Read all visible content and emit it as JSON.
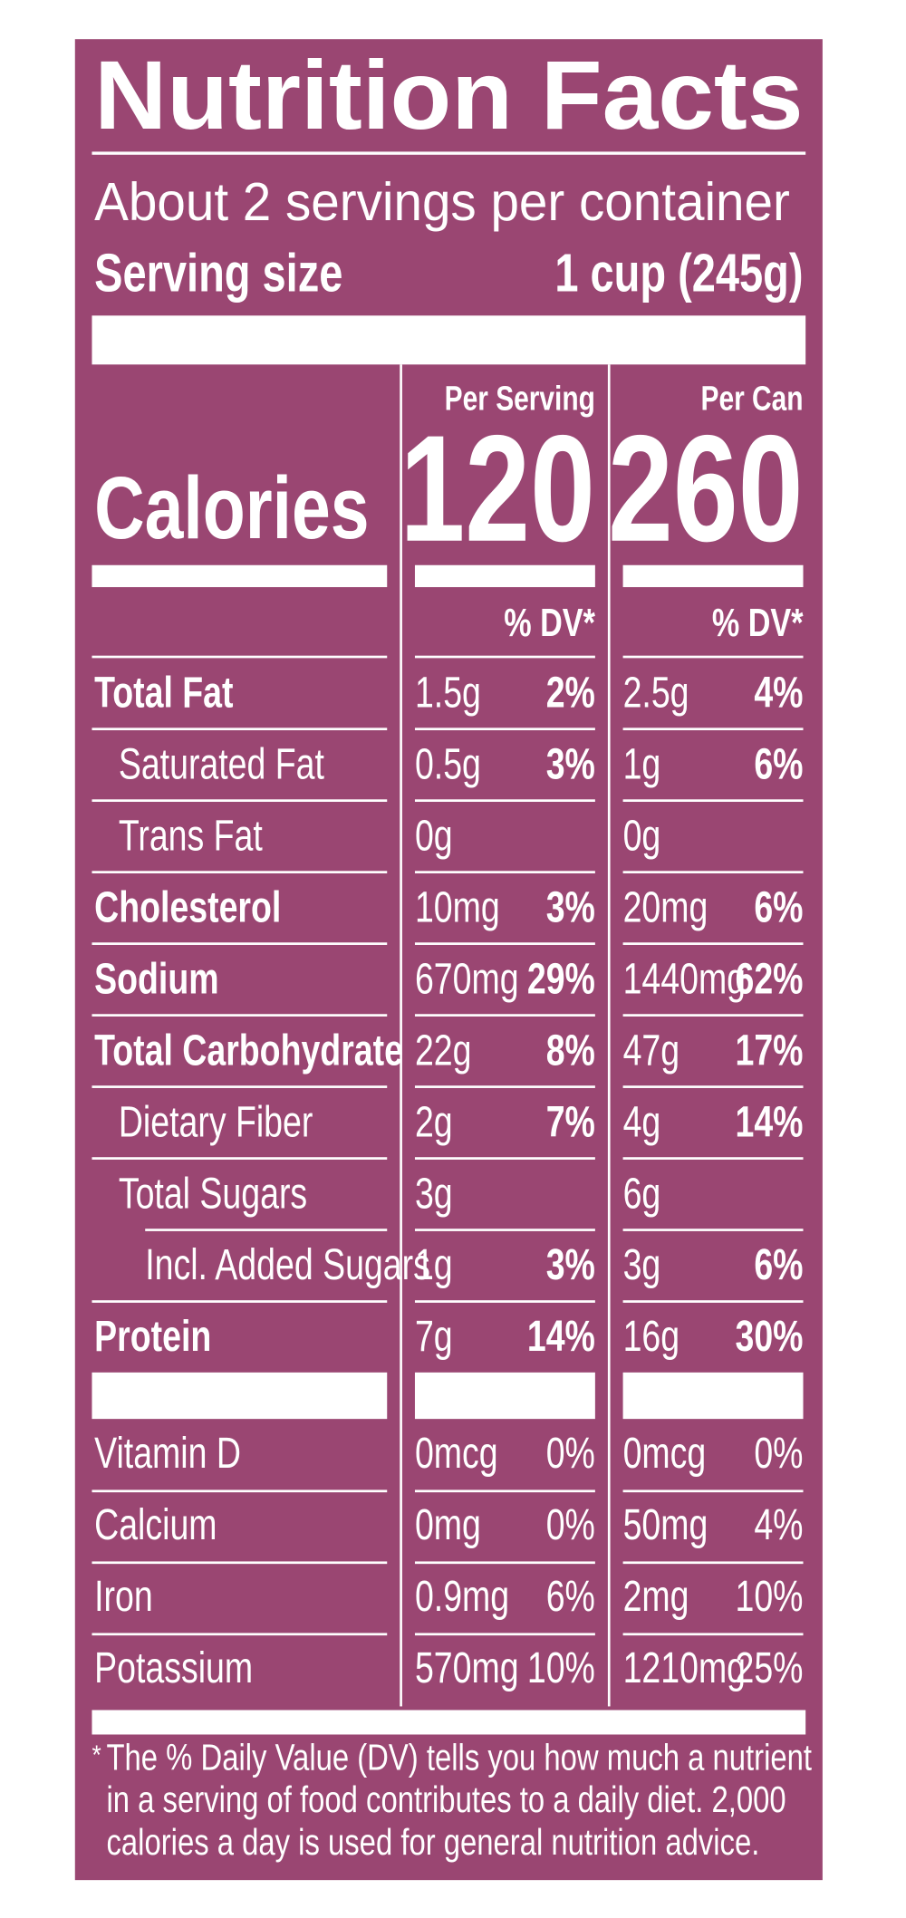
{
  "title": "Nutrition Facts",
  "servings": "About 2 servings per container",
  "serving_size": {
    "label": "Serving size",
    "value": "1 cup (245g)"
  },
  "calories_label": "Calories",
  "columns": [
    {
      "header": "Per Serving",
      "calories": "120",
      "dv_header": "% DV*"
    },
    {
      "header": "Per Can",
      "calories": "260",
      "dv_header": "% DV*"
    }
  ],
  "nutrients": [
    {
      "name": "Total Fat",
      "bold": true,
      "indent": 0,
      "values": [
        [
          "1.5g",
          "2%"
        ],
        [
          "2.5g",
          "4%"
        ]
      ]
    },
    {
      "name": "Saturated Fat",
      "bold": false,
      "indent": 1,
      "values": [
        [
          "0.5g",
          "3%"
        ],
        [
          "1g",
          "6%"
        ]
      ]
    },
    {
      "name": "Trans Fat",
      "bold": false,
      "indent": 1,
      "values": [
        [
          "0g",
          null
        ],
        [
          "0g",
          null
        ]
      ]
    },
    {
      "name": "Cholesterol",
      "bold": true,
      "indent": 0,
      "values": [
        [
          "10mg",
          "3%"
        ],
        [
          "20mg",
          "6%"
        ]
      ]
    },
    {
      "name": "Sodium",
      "bold": true,
      "indent": 0,
      "values": [
        [
          "670mg",
          "29%"
        ],
        [
          "1440mg",
          "62%"
        ]
      ]
    },
    {
      "name": "Total Carbohydrate",
      "bold": true,
      "indent": 0,
      "values": [
        [
          "22g",
          "8%"
        ],
        [
          "47g",
          "17%"
        ]
      ]
    },
    {
      "name": "Dietary Fiber",
      "bold": false,
      "indent": 1,
      "values": [
        [
          "2g",
          "7%"
        ],
        [
          "4g",
          "14%"
        ]
      ]
    },
    {
      "name": "Total Sugars",
      "bold": false,
      "indent": 1,
      "values": [
        [
          "3g",
          null
        ],
        [
          "6g",
          null
        ]
      ]
    },
    {
      "name": "Incl. Added Sugars",
      "bold": false,
      "indent": 2,
      "values": [
        [
          "1g",
          "3%"
        ],
        [
          "3g",
          "6%"
        ]
      ]
    },
    {
      "name": "Protein",
      "bold": true,
      "indent": 0,
      "values": [
        [
          "7g",
          "14%"
        ],
        [
          "16g",
          "30%"
        ]
      ]
    }
  ],
  "vitamins": [
    {
      "name": "Vitamin D",
      "values": [
        [
          "0mcg",
          "0%"
        ],
        [
          "0mcg",
          "0%"
        ]
      ]
    },
    {
      "name": "Calcium",
      "values": [
        [
          "0mg",
          "0%"
        ],
        [
          "50mg",
          "4%"
        ]
      ]
    },
    {
      "name": "Iron",
      "values": [
        [
          "0.9mg",
          "6%"
        ],
        [
          "2mg",
          "10%"
        ]
      ]
    },
    {
      "name": "Potassium",
      "values": [
        [
          "570mg",
          "10%"
        ],
        [
          "1210mg",
          "25%"
        ]
      ]
    }
  ],
  "footnote": {
    "mark": "*",
    "lines": [
      "The % Daily Value (DV) tells you how much a nutrient",
      "in a serving of food contributes to a daily diet. 2,000",
      "calories a day is used for general nutrition advice."
    ]
  }
}
